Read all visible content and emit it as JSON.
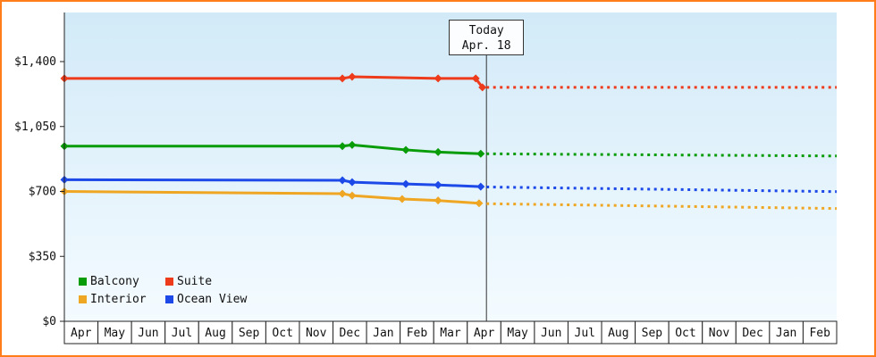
{
  "frame": {
    "border_color": "#ff7d1a"
  },
  "chart_data": {
    "type": "line",
    "title": "",
    "xlabel": "",
    "ylabel": "",
    "grid": false,
    "x_months": [
      "Apr",
      "May",
      "Jun",
      "Jul",
      "Aug",
      "Sep",
      "Oct",
      "Nov",
      "Dec",
      "Jan",
      "Feb",
      "Mar",
      "Apr",
      "May",
      "Jun",
      "Jul",
      "Aug",
      "Sep",
      "Oct",
      "Nov",
      "Dec",
      "Jan",
      "Feb"
    ],
    "y_ticks": [
      {
        "label": "$0",
        "value": 0
      },
      {
        "label": "$350",
        "value": 350
      },
      {
        "label": "$700",
        "value": 700
      },
      {
        "label": "$1,050",
        "value": 1050
      },
      {
        "label": "$1,400",
        "value": 1400
      }
    ],
    "ylim": [
      0,
      1400
    ],
    "today": {
      "line1": "Today",
      "line2": "Apr. 18",
      "x_month": 12.57
    },
    "series": [
      {
        "name": "Balcony",
        "color": "#089c08",
        "solid": [
          [
            0,
            944
          ],
          [
            8.28,
            944
          ],
          [
            8.57,
            951
          ],
          [
            10.17,
            924
          ],
          [
            11.13,
            912
          ],
          [
            12.4,
            903
          ]
        ],
        "forecast": [
          [
            12.57,
            903
          ],
          [
            23,
            891
          ]
        ]
      },
      {
        "name": "Suite",
        "color": "#ee3b1c",
        "solid": [
          [
            0,
            1309
          ],
          [
            8.28,
            1309
          ],
          [
            8.57,
            1318
          ],
          [
            11.13,
            1309
          ],
          [
            12.25,
            1309
          ],
          [
            12.45,
            1261
          ]
        ],
        "forecast": [
          [
            12.57,
            1261
          ],
          [
            23,
            1261
          ]
        ]
      },
      {
        "name": "Interior",
        "color": "#efa623",
        "solid": [
          [
            0,
            700
          ],
          [
            8.28,
            688
          ],
          [
            8.57,
            678
          ],
          [
            10.06,
            659
          ],
          [
            11.13,
            651
          ],
          [
            12.35,
            636
          ]
        ],
        "forecast": [
          [
            12.57,
            634
          ],
          [
            23,
            608
          ]
        ]
      },
      {
        "name": "Ocean View",
        "color": "#1c49e8",
        "solid": [
          [
            0,
            763
          ],
          [
            8.28,
            760
          ],
          [
            8.57,
            750
          ],
          [
            10.17,
            740
          ],
          [
            11.13,
            735
          ],
          [
            12.4,
            726
          ]
        ],
        "forecast": [
          [
            12.57,
            724
          ],
          [
            23,
            699
          ]
        ]
      }
    ],
    "legend": {
      "position": "bottom-left",
      "items": [
        "Balcony",
        "Suite",
        "Interior",
        "Ocean View"
      ]
    }
  }
}
